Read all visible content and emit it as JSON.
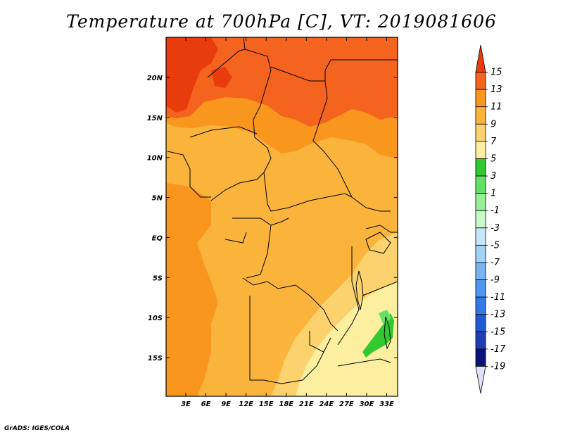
{
  "title": "Temperature at 700hPa [C], VT: 2019081606",
  "credit": "GrADS: IGES/COLA",
  "map": {
    "lat_labels": [
      "20N",
      "15N",
      "10N",
      "5N",
      "EQ",
      "5S",
      "10S",
      "15S"
    ],
    "lon_labels": [
      "3E",
      "6E",
      "9E",
      "12E",
      "15E",
      "18E",
      "21E",
      "24E",
      "27E",
      "30E",
      "33E"
    ]
  },
  "colorbar": {
    "labels": [
      "15",
      "13",
      "11",
      "9",
      "7",
      "5",
      "3",
      "1",
      "-1",
      "-3",
      "-5",
      "-7",
      "-9",
      "-11",
      "-13",
      "-15",
      "-17",
      "-19"
    ],
    "colors": [
      "#e83c0c",
      "#f4641e",
      "#f8961e",
      "#fab43c",
      "#fcd26e",
      "#fcf0a0",
      "#32c832",
      "#64e164",
      "#96f096",
      "#c8fac8",
      "#c8e6fa",
      "#a0d2f5",
      "#78b4f0",
      "#5096f0",
      "#3278e6",
      "#1e5ad2",
      "#1e3cb4",
      "#0a1478",
      "#e0e0f8"
    ]
  }
}
